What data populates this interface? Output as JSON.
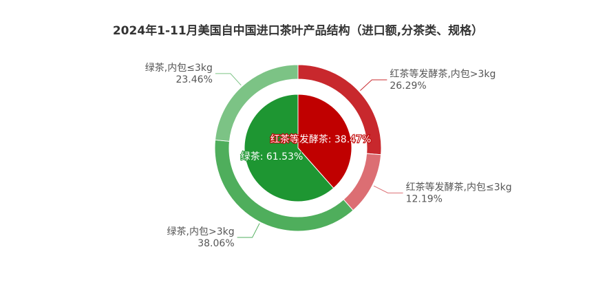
{
  "title": "2024年1-11月美国自中国进口茶叶产品结构（进口额,分茶类、规格）",
  "chart_data": [
    {
      "type": "pie",
      "ring": "inner",
      "slices": [
        {
          "name": "红茶等发酵茶",
          "value": 38.47,
          "label": "红茶等发酵茶: 38.47%",
          "color": "#c00000"
        },
        {
          "name": "绿茶",
          "value": 61.53,
          "label": "绿茶: 61.53%",
          "color": "#1e9632"
        }
      ]
    },
    {
      "type": "pie",
      "ring": "outer",
      "slices": [
        {
          "name": "红茶等发酵茶,内包>3kg",
          "value": 26.29,
          "label_name": "红茶等发酵茶,内包>3kg",
          "label_value": "26.29%",
          "color": "#c8282d"
        },
        {
          "name": "红茶等发酵茶,内包≤3kg",
          "value": 12.19,
          "label_name": "红茶等发酵茶,内包≤3kg",
          "label_value": "12.19%",
          "color": "#dc6e73"
        },
        {
          "name": "绿茶,内包>3kg",
          "value": 38.06,
          "label_name": "绿茶,内包>3kg",
          "label_value": "38.06%",
          "color": "#4fae5c"
        },
        {
          "name": "绿茶,内包≤3kg",
          "value": 23.46,
          "label_name": "绿茶,内包≤3kg",
          "label_value": "23.46%",
          "color": "#7cc385"
        }
      ]
    }
  ]
}
